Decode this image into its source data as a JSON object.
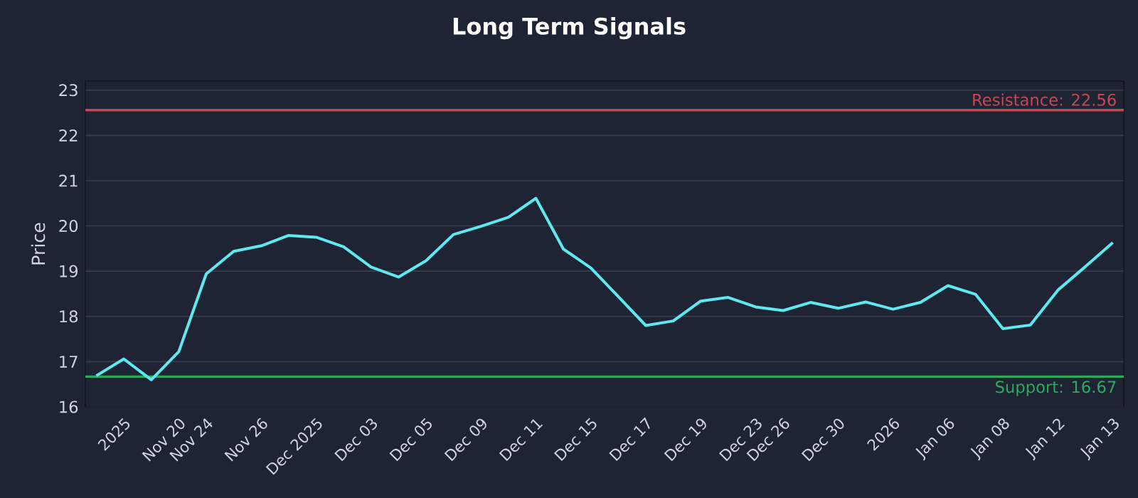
{
  "chart_data": {
    "type": "line",
    "title": "Long Term Signals",
    "ylabel": "Price",
    "categories": [
      null,
      "2025",
      null,
      "Nov 20",
      "Nov 24",
      null,
      "Nov 26",
      null,
      "Dec 2025",
      null,
      "Dec 03",
      null,
      "Dec 05",
      null,
      "Dec 09",
      null,
      "Dec 11",
      null,
      "Dec 15",
      null,
      "Dec 17",
      null,
      "Dec 19",
      null,
      "Dec 23",
      "Dec 26",
      null,
      "Dec 30",
      null,
      "2026",
      null,
      "Jan 06",
      null,
      "Jan 08",
      null,
      "Jan 12",
      null,
      "Jan 13"
    ],
    "series": [
      {
        "color": "#5ee8f0",
        "values": [
          16.69,
          17.06,
          16.6,
          17.22,
          18.94,
          19.44,
          19.56,
          19.79,
          19.75,
          19.54,
          19.09,
          18.87,
          19.23,
          19.81,
          19.99,
          20.19,
          20.61,
          19.49,
          19.07,
          18.44,
          17.8,
          17.9,
          18.34,
          18.42,
          18.21,
          18.13,
          18.31,
          18.18,
          18.32,
          18.16,
          18.31,
          18.68,
          18.49,
          17.73,
          17.81,
          18.58,
          19.1,
          19.63
        ]
      }
    ],
    "ylim": [
      16,
      23.2
    ],
    "yticks": [
      16,
      17,
      18,
      19,
      20,
      21,
      22,
      23
    ],
    "grid": "y",
    "marker": "none",
    "line_style": "solid",
    "ref_lines": [
      {
        "axis": "y",
        "value": 22.56,
        "label": "Resistance: 22.56",
        "color": "#c8474f"
      },
      {
        "axis": "y",
        "value": 16.67,
        "label": "Support: 16.67",
        "color": "#2ea85a"
      }
    ]
  }
}
